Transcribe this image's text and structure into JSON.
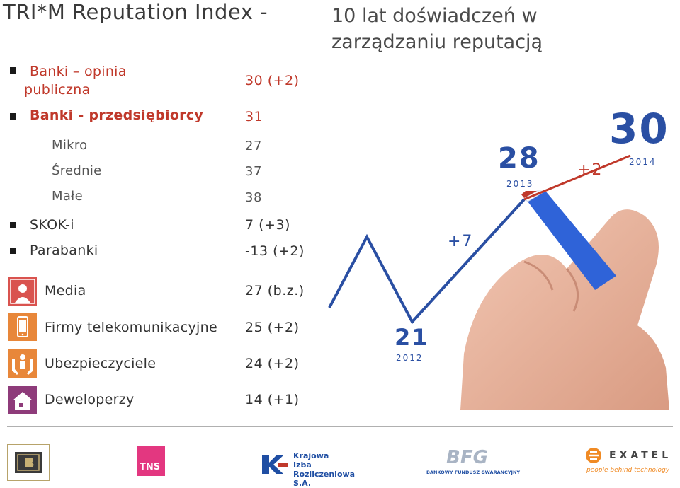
{
  "title": "TRI*M Reputation Index -",
  "subtitle_lines": [
    "10 lat doświadczeń w",
    "zarządzaniu reputacją"
  ],
  "rows": {
    "banki_opinia": {
      "label_lines": [
        "Banki – opinia",
        "publiczna"
      ],
      "value": "30 (+2)"
    },
    "banki_przed": {
      "label": "Banki - przedsiębiorcy",
      "value": "31"
    },
    "mikro": {
      "label": "Mikro",
      "value": "27"
    },
    "srednie": {
      "label": "Średnie",
      "value": "37"
    },
    "male": {
      "label": "Małe",
      "value": "38"
    },
    "skok": {
      "label": "SKOK-i",
      "value": "7 (+3)"
    },
    "parabanki": {
      "label": "Parabanki",
      "value": "-13 (+2)"
    },
    "media": {
      "label": "Media",
      "value": "27 (b.z.)",
      "icon": "person-icon"
    },
    "telekom": {
      "label": "Firmy telekomunikacyjne",
      "value": "25 (+2)",
      "icon": "phone-icon"
    },
    "ubezp": {
      "label": "Ubezpieczyciele",
      "value": "24 (+2)",
      "icon": "hands-icon"
    },
    "dewel": {
      "label": "Deweloperzy",
      "value": "14 (+1)",
      "icon": "house-icon"
    }
  },
  "chart_data": {
    "type": "line",
    "points": [
      {
        "x": "2012",
        "y": 21,
        "label": "21"
      },
      {
        "x": "2013",
        "y": 28,
        "label": "28"
      },
      {
        "x": "2014",
        "y": 30,
        "label": "30"
      }
    ],
    "annotations": [
      "+7",
      "+2"
    ]
  },
  "logos": {
    "krajowa": [
      "Krajowa",
      "Izba",
      "Rozliczeniowa S.A."
    ],
    "tns": "TNS",
    "bfg": "BFG",
    "bfg_sub": "BANKOWY FUNDUSZ GWARANCYJNY",
    "exatel": "EXATEL",
    "exatel_tag": "people behind technology"
  },
  "colors": {
    "accent_red": "#c0392b",
    "icon_red": "#d9534f",
    "chart_blue": "#2a4fa3",
    "pen_blue": "#2f63d8"
  }
}
